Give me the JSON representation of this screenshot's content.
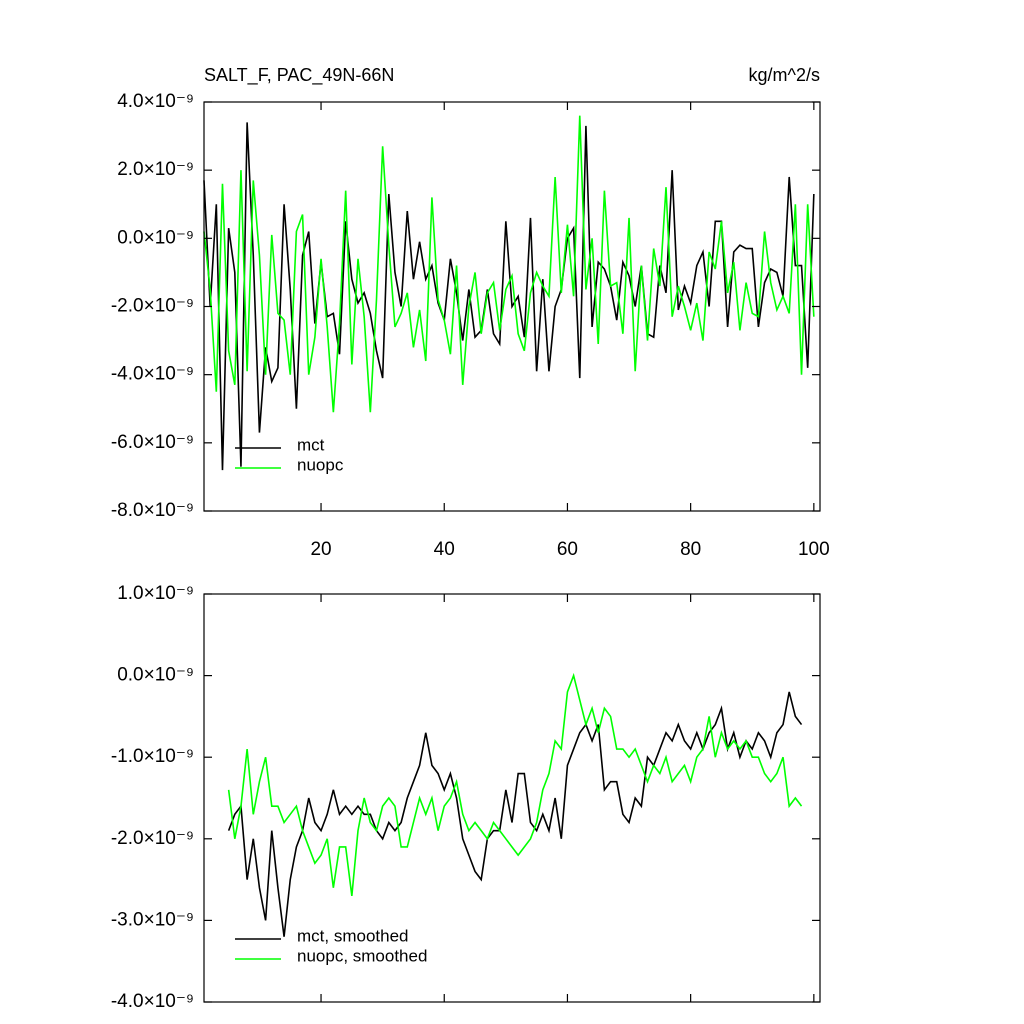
{
  "chart_data": [
    {
      "type": "line",
      "title": "SALT_F, PAC_49N-66N",
      "unit": "kg/m^2/s",
      "x": [
        1,
        2,
        3,
        4,
        5,
        6,
        7,
        8,
        9,
        10,
        11,
        12,
        13,
        14,
        15,
        16,
        17,
        18,
        19,
        20,
        21,
        22,
        23,
        24,
        25,
        26,
        27,
        28,
        29,
        30,
        31,
        32,
        33,
        34,
        35,
        36,
        37,
        38,
        39,
        40,
        41,
        42,
        43,
        44,
        45,
        46,
        47,
        48,
        49,
        50,
        51,
        52,
        53,
        54,
        55,
        56,
        57,
        58,
        59,
        60,
        61,
        62,
        63,
        64,
        65,
        66,
        67,
        68,
        69,
        70,
        71,
        72,
        73,
        74,
        75,
        76,
        77,
        78,
        79,
        80,
        81,
        82,
        83,
        84,
        85,
        86,
        87,
        88,
        89,
        90,
        91,
        92,
        93,
        94,
        95,
        96,
        97,
        98,
        99,
        100
      ],
      "series": [
        {
          "name": "mct",
          "color": "#000000",
          "values": [
            1.7e-09,
            -2e-09,
            1e-09,
            -6.8e-09,
            3e-10,
            -1e-09,
            -6.7e-09,
            3.4e-09,
            -5e-10,
            -5.7e-09,
            -3.2e-09,
            -4.2e-09,
            -3.8e-09,
            1e-09,
            -1.5e-09,
            -5e-09,
            -5e-10,
            2e-10,
            -2.5e-09,
            -7e-10,
            -2.3e-09,
            -2.2e-09,
            -3.4e-09,
            5e-10,
            -1.2e-09,
            -1.9e-09,
            -1.6e-09,
            -2.2e-09,
            -3.3e-09,
            -4.1e-09,
            1.3e-09,
            -1e-09,
            -2e-09,
            8e-10,
            -1.2e-09,
            -1e-10,
            -1.2e-09,
            -8e-10,
            -1.9e-09,
            -2.4e-09,
            -6e-10,
            -1.6e-09,
            -3e-09,
            -1.5e-09,
            -2.9e-09,
            -2.7e-09,
            -1.5e-09,
            -2.8e-09,
            -3.1e-09,
            5e-10,
            -2e-09,
            -1.7e-09,
            -2.9e-09,
            6e-10,
            -3.9e-09,
            -1.2e-09,
            -3.9e-09,
            -2e-09,
            -1.5e-09,
            0.0,
            3e-10,
            -4.1e-09,
            3.3e-09,
            -2.6e-09,
            -7e-10,
            -9e-10,
            -1.4e-09,
            -2.4e-09,
            -7e-10,
            -1.1e-09,
            -2e-09,
            -8e-10,
            -2.8e-09,
            -2.9e-09,
            -8e-10,
            -1.6e-09,
            2e-09,
            -2.1e-09,
            -1.4e-09,
            -1.9e-09,
            -8e-10,
            -4e-10,
            -2e-09,
            5e-10,
            5e-10,
            -2.6e-09,
            -4e-10,
            -2e-10,
            -3e-10,
            -3e-10,
            -2.6e-09,
            -1.3e-09,
            -9e-10,
            -1e-09,
            -1.7e-09,
            1.8e-09,
            -8e-10,
            -8e-10,
            -3.8e-09,
            1.3e-09
          ]
        },
        {
          "name": "nuopc",
          "color": "#00ff00",
          "values": [
            2e-10,
            -1.5e-09,
            -4.5e-09,
            1.6e-09,
            -3.3e-09,
            -4.3e-09,
            2e-09,
            -3.9e-09,
            1.7e-09,
            -5e-10,
            -4e-09,
            1e-10,
            -2.2e-09,
            -2.4e-09,
            -4e-09,
            2e-10,
            7e-10,
            -4e-09,
            -2.9e-09,
            -6e-10,
            -2.6e-09,
            -5.1e-09,
            -2.5e-09,
            1.4e-09,
            -3.7e-09,
            -6e-10,
            -2.3e-09,
            -5.1e-09,
            -1.8e-09,
            2.7e-09,
            -2e-10,
            -2.6e-09,
            -2.2e-09,
            -1.6e-09,
            -3.2e-09,
            -2.1e-09,
            -3.6e-09,
            1.2e-09,
            -1.8e-09,
            -2.4e-09,
            -3.4e-09,
            -8e-10,
            -4.3e-09,
            -2e-09,
            -1e-09,
            -2.8e-09,
            -1.6e-09,
            -1.3e-09,
            -2.7e-09,
            -1.5e-09,
            -1.1e-09,
            -2.8e-09,
            -3.3e-09,
            -1.6e-09,
            -1e-09,
            -1.4e-09,
            -1.7e-09,
            1.8e-09,
            -1.6e-09,
            4e-10,
            -1.7e-09,
            3.6e-09,
            -1.5e-09,
            0.0,
            -3.1e-09,
            1.4e-09,
            -1.4e-09,
            -1.3e-09,
            -2.8e-09,
            6e-10,
            -3.9e-09,
            -8e-10,
            -3e-09,
            -3e-10,
            -1.4e-09,
            1.5e-09,
            -2.3e-09,
            -1.4e-09,
            -2e-09,
            -2.7e-09,
            -1.9e-09,
            -3e-09,
            -4e-10,
            -9e-10,
            5e-10,
            -1.6e-09,
            -7e-10,
            -2.7e-09,
            -1.3e-09,
            -2.2e-09,
            -2.3e-09,
            2e-10,
            -1.3e-09,
            -2.1e-09,
            -1.7e-09,
            -2.2e-09,
            1e-09,
            -4e-09,
            1e-09,
            -2.3e-09
          ]
        }
      ],
      "xlim": [
        1,
        101
      ],
      "xticks": [
        20,
        40,
        60,
        80,
        100
      ],
      "show_xtick_labels": true,
      "ylim": [
        -8e-09,
        4e-09
      ],
      "yticks": [
        {
          "value": -8e-09,
          "label": "-8.0×10⁻⁹"
        },
        {
          "value": -6e-09,
          "label": "-6.0×10⁻⁹"
        },
        {
          "value": -4e-09,
          "label": "-4.0×10⁻⁹"
        },
        {
          "value": -2e-09,
          "label": "-2.0×10⁻⁹"
        },
        {
          "value": 0,
          "label": "0.0×10⁻⁹"
        },
        {
          "value": 2e-09,
          "label": "2.0×10⁻⁹"
        },
        {
          "value": 4e-09,
          "label": "4.0×10⁻⁹"
        }
      ],
      "legend": "lower left"
    },
    {
      "type": "line",
      "x": [
        5,
        6,
        7,
        8,
        9,
        10,
        11,
        12,
        13,
        14,
        15,
        16,
        17,
        18,
        19,
        20,
        21,
        22,
        23,
        24,
        25,
        26,
        27,
        28,
        29,
        30,
        31,
        32,
        33,
        34,
        35,
        36,
        37,
        38,
        39,
        40,
        41,
        42,
        43,
        44,
        45,
        46,
        47,
        48,
        49,
        50,
        51,
        52,
        53,
        54,
        55,
        56,
        57,
        58,
        59,
        60,
        61,
        62,
        63,
        64,
        65,
        66,
        67,
        68,
        69,
        70,
        71,
        72,
        73,
        74,
        75,
        76,
        77,
        78,
        79,
        80,
        81,
        82,
        83,
        84,
        85,
        86,
        87,
        88,
        89,
        90,
        91,
        92,
        93,
        94,
        95,
        96,
        97,
        98
      ],
      "series": [
        {
          "name": "mct, smoothed",
          "color": "#000000",
          "values": [
            -1.9e-09,
            -1.7e-09,
            -1.6e-09,
            -2.5e-09,
            -2e-09,
            -2.6e-09,
            -3e-09,
            -1.9e-09,
            -2.6e-09,
            -3.2e-09,
            -2.5e-09,
            -2.1e-09,
            -1.9e-09,
            -1.5e-09,
            -1.8e-09,
            -1.9e-09,
            -1.7e-09,
            -1.4e-09,
            -1.7e-09,
            -1.6e-09,
            -1.7e-09,
            -1.6e-09,
            -1.7e-09,
            -1.7e-09,
            -1.9e-09,
            -2e-09,
            -1.8e-09,
            -1.9e-09,
            -1.8e-09,
            -1.5e-09,
            -1.3e-09,
            -1.1e-09,
            -7e-10,
            -1.1e-09,
            -1.2e-09,
            -1.4e-09,
            -1.2e-09,
            -1.5e-09,
            -2e-09,
            -2.2e-09,
            -2.4e-09,
            -2.5e-09,
            -2e-09,
            -1.9e-09,
            -1.9e-09,
            -1.4e-09,
            -1.8e-09,
            -1.2e-09,
            -1.2e-09,
            -1.8e-09,
            -1.9e-09,
            -1.7e-09,
            -1.9e-09,
            -1.5e-09,
            -2e-09,
            -1.1e-09,
            -9e-10,
            -7e-10,
            -6e-10,
            -8e-10,
            -6e-10,
            -1.4e-09,
            -1.3e-09,
            -1.3e-09,
            -1.7e-09,
            -1.8e-09,
            -1.5e-09,
            -1.6e-09,
            -1e-09,
            -1.1e-09,
            -9e-10,
            -7e-10,
            -8e-10,
            -6e-10,
            -8e-10,
            -9e-10,
            -7e-10,
            -9e-10,
            -7e-10,
            -6e-10,
            -4e-10,
            -9e-10,
            -7e-10,
            -1e-09,
            -8e-10,
            -9e-10,
            -7e-10,
            -8e-10,
            -1e-09,
            -7e-10,
            -6e-10,
            -2e-10,
            -5e-10,
            -6e-10
          ]
        },
        {
          "name": "nuopc, smoothed",
          "color": "#00ff00",
          "values": [
            -1.4e-09,
            -2e-09,
            -1.6e-09,
            -9e-10,
            -1.7e-09,
            -1.3e-09,
            -1e-09,
            -1.6e-09,
            -1.6e-09,
            -1.8e-09,
            -1.7e-09,
            -1.6e-09,
            -1.9e-09,
            -2.1e-09,
            -2.3e-09,
            -2.2e-09,
            -2e-09,
            -2.6e-09,
            -2.1e-09,
            -2.1e-09,
            -2.7e-09,
            -1.9e-09,
            -1.5e-09,
            -1.8e-09,
            -1.9e-09,
            -1.6e-09,
            -1.5e-09,
            -1.6e-09,
            -2.1e-09,
            -2.1e-09,
            -1.8e-09,
            -1.5e-09,
            -1.7e-09,
            -1.5e-09,
            -1.9e-09,
            -1.6e-09,
            -1.5e-09,
            -1.3e-09,
            -1.7e-09,
            -1.9e-09,
            -1.8e-09,
            -1.9e-09,
            -2e-09,
            -1.8e-09,
            -1.9e-09,
            -2e-09,
            -2.1e-09,
            -2.2e-09,
            -2.1e-09,
            -2e-09,
            -1.8e-09,
            -1.4e-09,
            -1.2e-09,
            -8e-10,
            -9e-10,
            -2e-10,
            0.0,
            -3e-10,
            -6e-10,
            -4e-10,
            -7e-10,
            -4e-10,
            -5e-10,
            -9e-10,
            -9e-10,
            -1e-09,
            -9e-10,
            -1.1e-09,
            -1.3e-09,
            -1.1e-09,
            -1.2e-09,
            -1e-09,
            -1.3e-09,
            -1.2e-09,
            -1.1e-09,
            -1.3e-09,
            -1e-09,
            -9e-10,
            -5e-10,
            -1e-09,
            -7e-10,
            -9e-10,
            -8e-10,
            -9e-10,
            -8e-10,
            -1e-09,
            -1e-09,
            -1.2e-09,
            -1.3e-09,
            -1.2e-09,
            -1e-09,
            -1.6e-09,
            -1.5e-09,
            -1.6e-09
          ]
        }
      ],
      "xlim": [
        1,
        101
      ],
      "xticks": [
        20,
        40,
        60,
        80,
        100
      ],
      "show_xtick_labels": false,
      "ylim": [
        -4e-09,
        1e-09
      ],
      "yticks": [
        {
          "value": -4e-09,
          "label": "-4.0×10⁻⁹"
        },
        {
          "value": -3e-09,
          "label": "-3.0×10⁻⁹"
        },
        {
          "value": -2e-09,
          "label": "-2.0×10⁻⁹"
        },
        {
          "value": -1e-09,
          "label": "-1.0×10⁻⁹"
        },
        {
          "value": 0,
          "label": "0.0×10⁻⁹"
        },
        {
          "value": 1e-09,
          "label": "1.0×10⁻⁹"
        }
      ],
      "legend": "lower left"
    }
  ]
}
